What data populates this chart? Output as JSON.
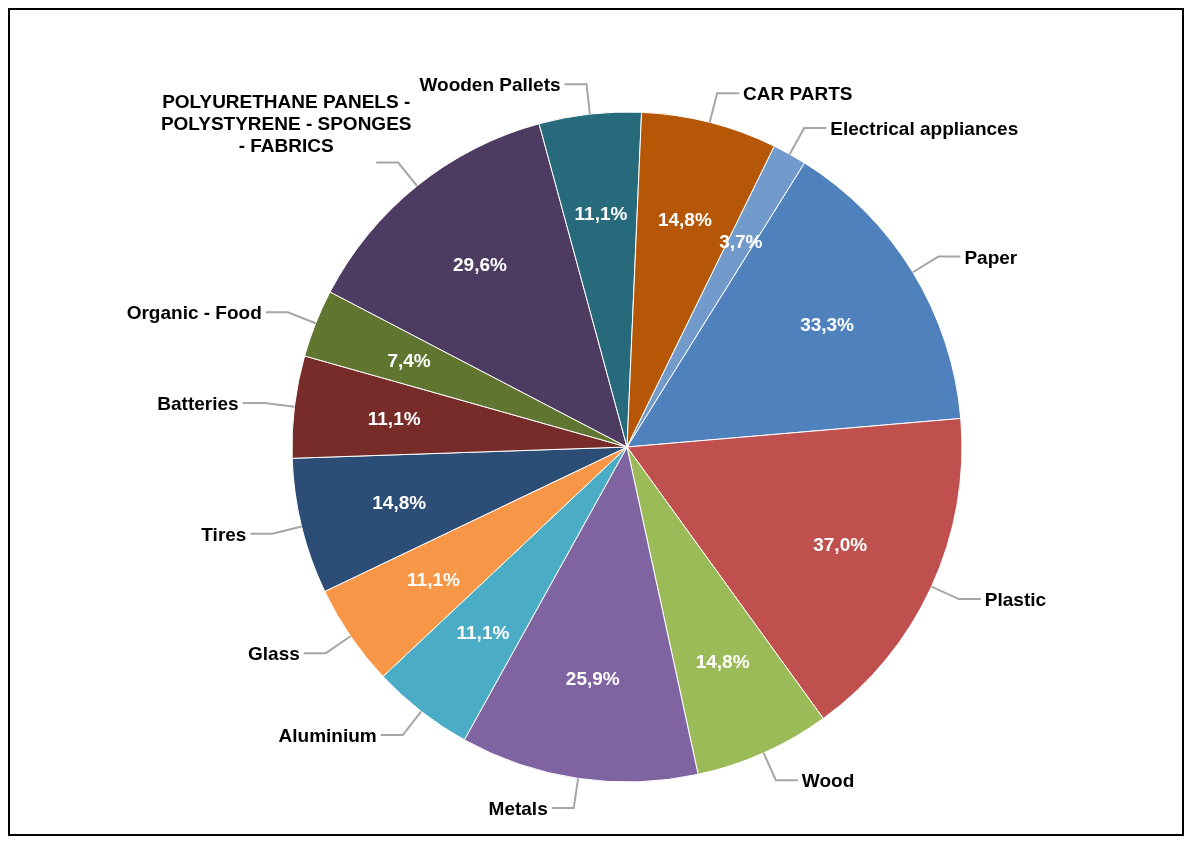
{
  "chart_data": {
    "type": "pie",
    "categories": [
      "Paper",
      "Plastic",
      "Wood",
      "Metals",
      "Aluminium",
      "Glass",
      "Tires",
      "Batteries",
      "Organic - Food",
      "POLYURETHANE PANELS - POLYSTYRENE - SPONGES - FABRICS",
      "Wooden Pallets",
      "CAR PARTS",
      "Electrical appliances"
    ],
    "values": [
      33.3,
      37.0,
      14.8,
      25.9,
      11.1,
      11.1,
      14.8,
      11.1,
      7.4,
      29.6,
      11.1,
      14.8,
      3.7
    ],
    "value_labels": [
      "33,3%",
      "37,0%",
      "14,8%",
      "25,9%",
      "11,1%",
      "11,1%",
      "14,8%",
      "11,1%",
      "7,4%",
      "29,6%",
      "11,1%",
      "14,8%",
      "3,7%"
    ],
    "colors": [
      "#4f81bd",
      "#c0504d",
      "#9bbb59",
      "#8064a2",
      "#4bacc6",
      "#f79646",
      "#2c4d75",
      "#772c2a",
      "#5f7530",
      "#4d3b62",
      "#276a7c",
      "#b65708",
      "#729aca"
    ],
    "legend": false
  }
}
